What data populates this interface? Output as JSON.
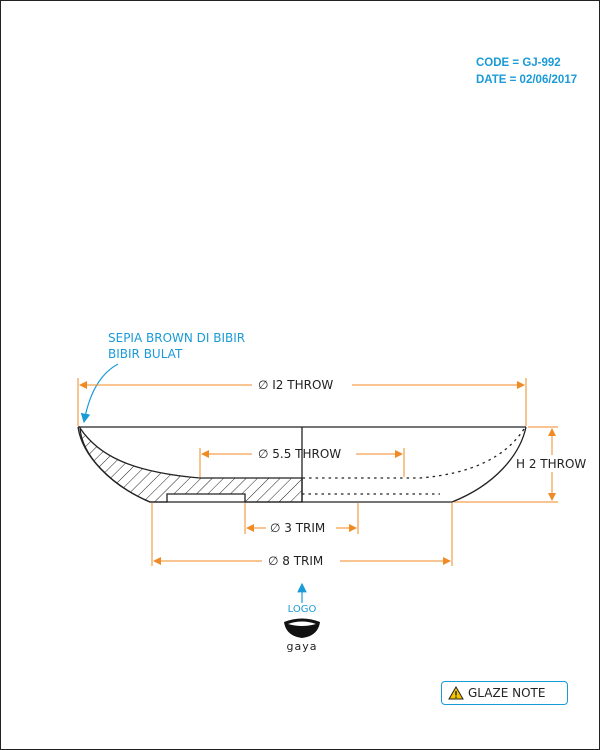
{
  "meta": {
    "code": "CODE = GJ-992",
    "date": "DATE = 02/06/2017"
  },
  "note": {
    "line1": "SEPIA BROWN DI BIBIR",
    "line2": "BIBIR BULAT"
  },
  "dimensions": {
    "throw_diameter": "∅ I2 THROW",
    "inner_throw": "∅ 5.5 THROW",
    "height": "H 2 THROW",
    "trim_small": "∅ 3 TRIM",
    "trim_large": "∅ 8 TRIM"
  },
  "logo": {
    "label": "LOGO",
    "brand": "gaya"
  },
  "glaze_button": {
    "label": "GLAZE NOTE"
  },
  "colors": {
    "accent": "#1a9bd7",
    "dimension": "#f08a24",
    "line": "#222222"
  }
}
